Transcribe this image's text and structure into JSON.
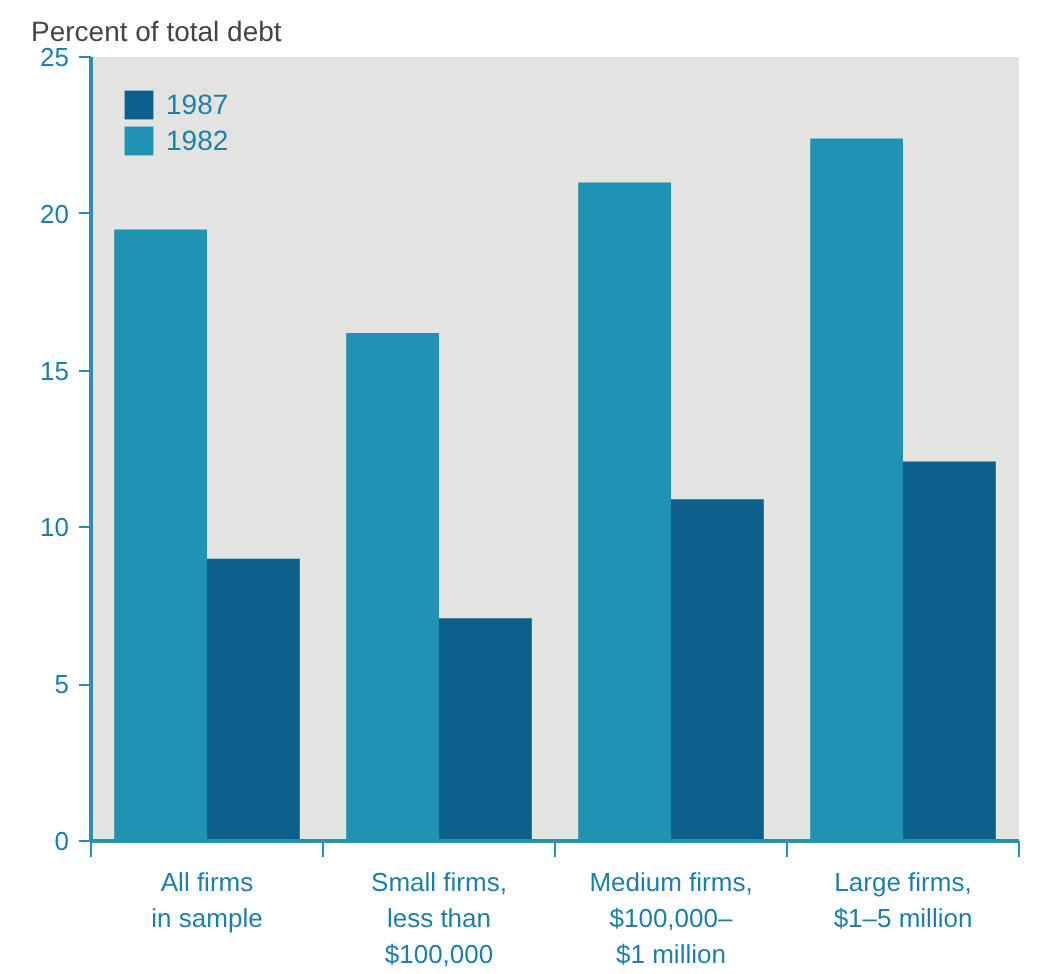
{
  "chart_data": {
    "type": "bar",
    "ylabel": "Percent of total debt",
    "categories": [
      "All firms\nin sample",
      "Small firms,\nless than\n$100,000",
      "Medium firms,\n$100,000–\n$1 million",
      "Large firms,\n$1–5 million"
    ],
    "series": [
      {
        "name": "1982",
        "color": "#1e93b4",
        "values": [
          19.5,
          16.2,
          21.0,
          22.4
        ]
      },
      {
        "name": "1987",
        "color": "#0d5f8c",
        "values": [
          9.0,
          7.1,
          10.9,
          12.1
        ]
      }
    ],
    "ylim": [
      0,
      25
    ],
    "yticks": [
      0,
      5,
      10,
      15,
      20,
      25
    ],
    "legend": "top left"
  }
}
